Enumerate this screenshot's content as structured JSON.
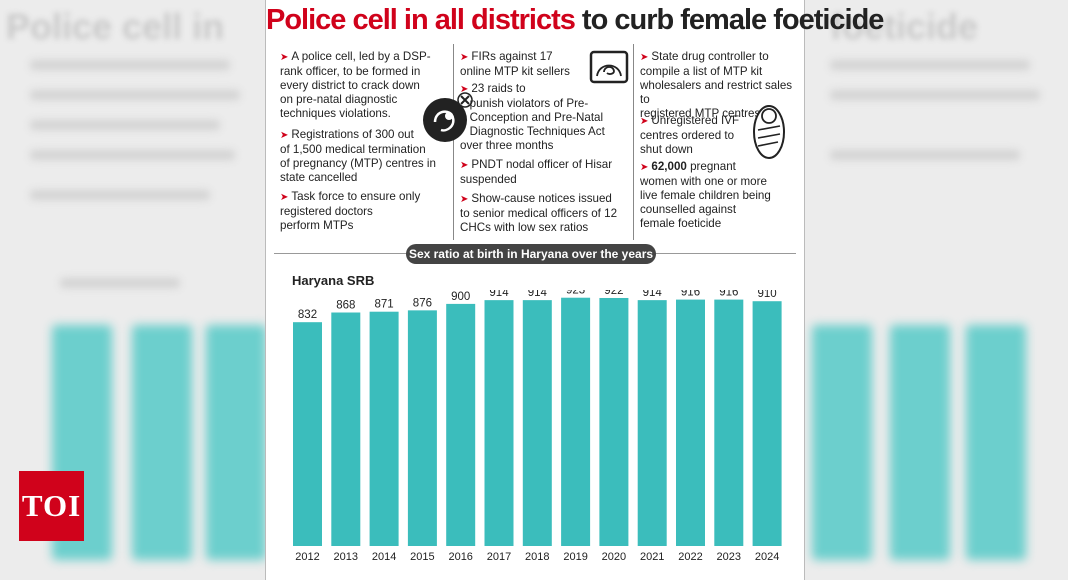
{
  "branding": {
    "logo_text": "TOI"
  },
  "headline": {
    "part1": "Police cell in all districts",
    "part2": "to curb female foeticide"
  },
  "columns": [
    {
      "items": [
        {
          "lines": [
            "A police cell, led by a DSP-",
            "rank officer, to be formed in",
            "every district to crack down",
            "on pre-natal diagnostic",
            "techniques violations."
          ]
        },
        {
          "lines": [
            "Registrations of 300 out",
            "of 1,500 medical termination",
            "of pregnancy (MTP) centres in",
            "state cancelled"
          ]
        },
        {
          "lines": [
            "Task force to ensure only",
            "registered doctors",
            "perform MTPs"
          ]
        }
      ]
    },
    {
      "items": [
        {
          "lines": [
            "FIRs against 17",
            "online MTP kit sellers"
          ]
        },
        {
          "lines": [
            "23 raids to",
            "punish violators of Pre-",
            "Conception and Pre-Natal",
            "Diagnostic Techniques Act",
            "over three months"
          ]
        },
        {
          "lines": [
            "PNDT nodal officer of Hisar",
            "suspended"
          ]
        },
        {
          "lines": [
            "Show-cause notices issued",
            "to senior medical officers of 12",
            "CHCs with low sex ratios"
          ]
        }
      ]
    },
    {
      "items": [
        {
          "lines": [
            "State drug controller to",
            "compile a list of MTP kit",
            "wholesalers and restrict sales to",
            "registered MTP centres"
          ]
        },
        {
          "lines": [
            "Unregistered IVF",
            "centres ordered to",
            "shut down"
          ]
        },
        {
          "bold": "62,000",
          "lines": [
            "pregnant",
            "women with one or more",
            "live female children being",
            "counselled against",
            "female foeticide"
          ]
        }
      ]
    }
  ],
  "icons": [
    "ultrasound-icon",
    "crossed-fetus-icon",
    "swaddled-baby-icon"
  ],
  "chart_data": {
    "type": "bar",
    "title": "Sex ratio at birth in Haryana over the years",
    "series_label": "Haryana SRB",
    "categories": [
      "2012",
      "2013",
      "2014",
      "2015",
      "2016",
      "2017",
      "2018",
      "2019",
      "2020",
      "2021",
      "2022",
      "2023",
      "2024"
    ],
    "values": [
      832,
      868,
      871,
      876,
      900,
      914,
      914,
      923,
      922,
      914,
      916,
      916,
      910
    ],
    "bar_color": "#3bbdbc",
    "grid": false
  }
}
